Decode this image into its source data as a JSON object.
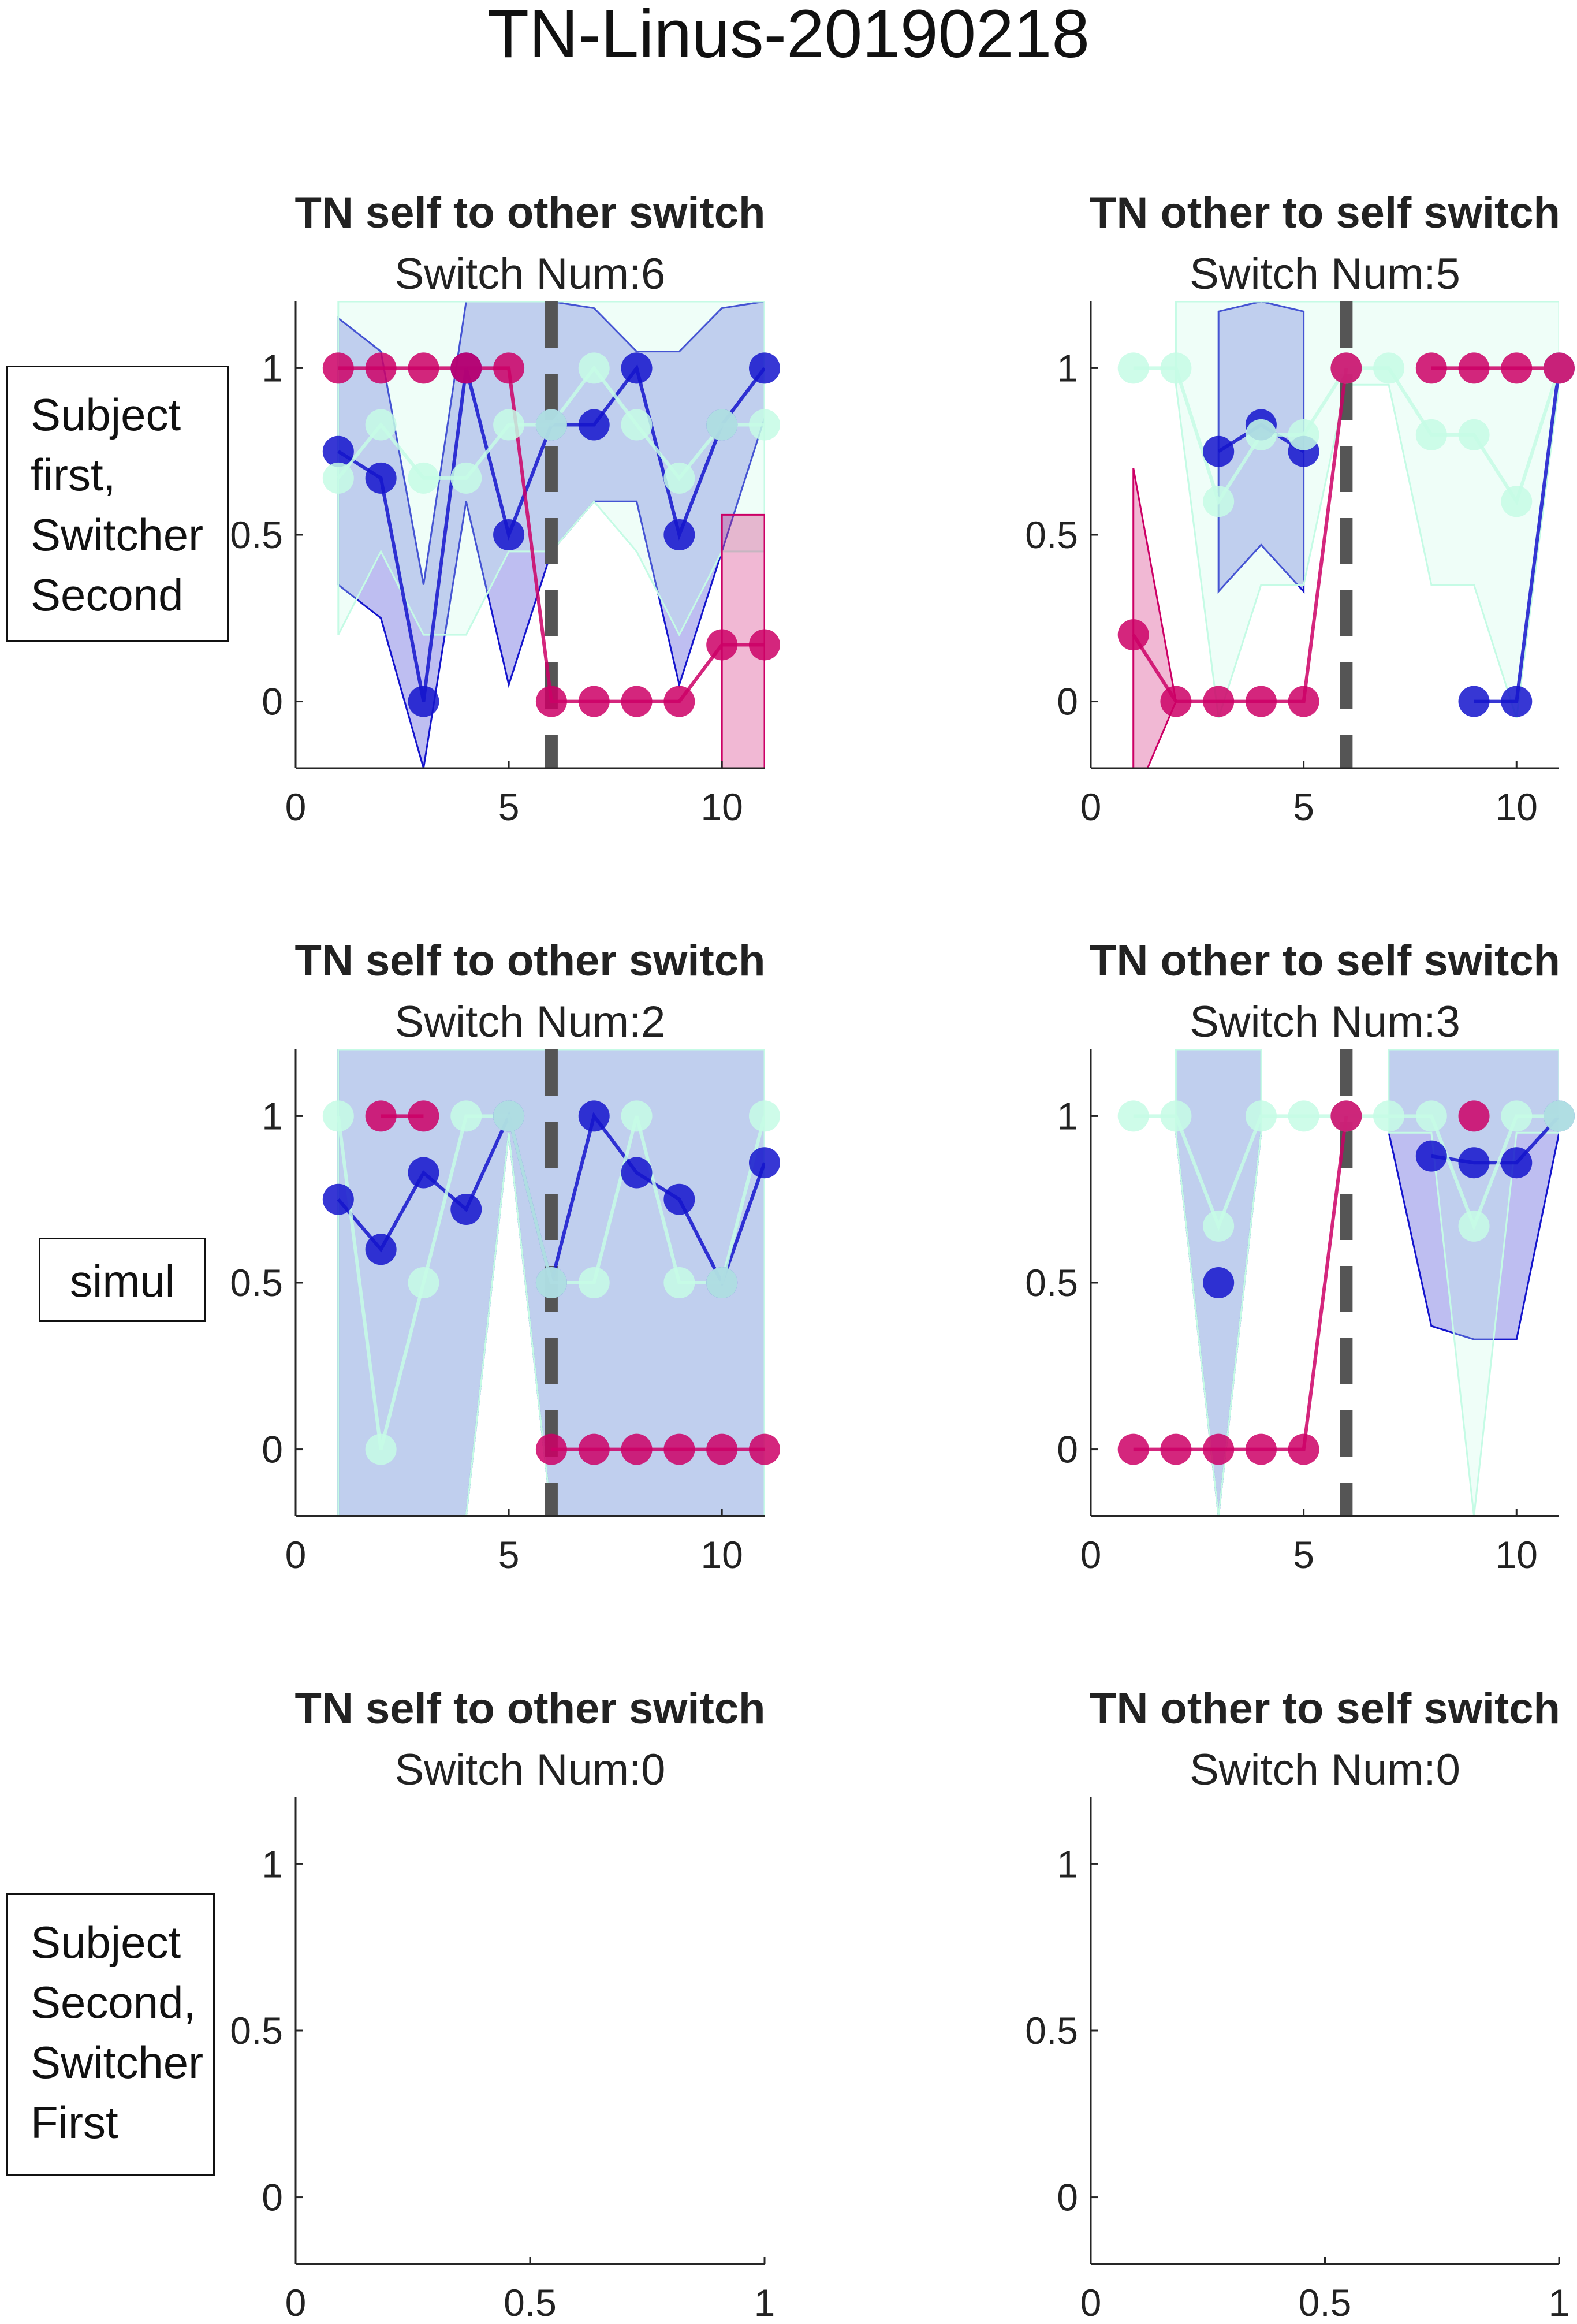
{
  "figure": {
    "title": "TN-Linus-20190218",
    "row_labels": [
      [
        "Subject",
        "first,",
        "Switcher",
        "Second"
      ],
      [
        "simul"
      ],
      [
        "Subject",
        "Second,",
        "Switcher",
        "First"
      ]
    ]
  },
  "chart_data": [
    {
      "type": "line",
      "title": "TN self to other switch",
      "subtitle": "Switch Num:6",
      "xlim": [
        0,
        11
      ],
      "ylim": [
        -0.2,
        1.2
      ],
      "xticks": [
        0,
        5,
        10
      ],
      "xtick_labels": [
        "0",
        "5",
        "10"
      ],
      "yticks": [
        0,
        0.5,
        1
      ],
      "ytick_labels": [
        "0",
        "0.5",
        "1"
      ],
      "switch_line_x": 6,
      "series": [
        {
          "color": "#1414cc",
          "x": [
            1,
            2,
            3,
            4,
            5,
            6,
            7,
            8,
            9,
            10,
            11
          ],
          "y": [
            0.75,
            0.67,
            0,
            1,
            0.5,
            0.83,
            0.83,
            1,
            0.5,
            0.83,
            1
          ],
          "upper": [
            1.15,
            1.05,
            0.35,
            1.2,
            1.2,
            1.2,
            1.18,
            1.05,
            1.05,
            1.18,
            1.2
          ],
          "lower": [
            0.35,
            0.25,
            -0.2,
            0.6,
            0.05,
            0.45,
            0.6,
            0.6,
            0.05,
            0.45,
            0.85
          ]
        },
        {
          "color": "#c5fbe5",
          "x": [
            1,
            2,
            3,
            4,
            5,
            6,
            7,
            8,
            9,
            10,
            11
          ],
          "y": [
            0.67,
            0.83,
            0.67,
            0.67,
            0.83,
            0.83,
            1,
            0.83,
            0.67,
            0.83,
            0.83
          ],
          "upper": [
            1.2,
            1.2,
            1.2,
            1.2,
            1.2,
            1.2,
            1.2,
            1.2,
            1.2,
            1.2,
            1.2
          ],
          "lower": [
            0.2,
            0.45,
            0.2,
            0.2,
            0.45,
            0.45,
            0.6,
            0.45,
            0.2,
            0.45,
            0.45
          ]
        },
        {
          "color": "#cc0066",
          "x": [
            1,
            2,
            3,
            4,
            5,
            6,
            7,
            8,
            9,
            10,
            11
          ],
          "y": [
            1,
            1,
            1,
            1,
            1,
            0,
            0,
            0,
            0,
            0.17,
            0.17
          ],
          "upper": [
            null,
            null,
            null,
            null,
            null,
            null,
            null,
            null,
            null,
            0.56,
            0.56
          ],
          "lower": [
            null,
            null,
            null,
            null,
            null,
            null,
            null,
            null,
            null,
            -0.22,
            -0.22
          ]
        }
      ]
    },
    {
      "type": "line",
      "title": "TN other to self switch",
      "subtitle": "Switch Num:5",
      "xlim": [
        0,
        11
      ],
      "ylim": [
        -0.2,
        1.2
      ],
      "xticks": [
        0,
        5,
        10
      ],
      "xtick_labels": [
        "0",
        "5",
        "10"
      ],
      "yticks": [
        0,
        0.5,
        1
      ],
      "ytick_labels": [
        "0",
        "0.5",
        "1"
      ],
      "switch_line_x": 6,
      "series": [
        {
          "color": "#1414cc",
          "x": [
            1,
            2,
            3,
            4,
            5,
            6,
            7,
            8,
            9,
            10,
            11
          ],
          "y": [
            null,
            null,
            0.75,
            0.83,
            0.75,
            null,
            null,
            null,
            0,
            0,
            1
          ],
          "upper": [
            null,
            null,
            1.17,
            1.2,
            1.17,
            null,
            null,
            null,
            null,
            null,
            null
          ],
          "lower": [
            null,
            null,
            0.33,
            0.47,
            0.33,
            null,
            null,
            null,
            null,
            null,
            null
          ]
        },
        {
          "color": "#c5fbe5",
          "x": [
            1,
            2,
            3,
            4,
            5,
            6,
            7,
            8,
            9,
            10,
            11
          ],
          "y": [
            1,
            1,
            0.6,
            0.8,
            0.8,
            1,
            1,
            0.8,
            0.8,
            0.6,
            1
          ],
          "upper": [
            null,
            1.2,
            1.2,
            1.2,
            1.2,
            1.2,
            1.2,
            1.2,
            1.2,
            1.2,
            1.2
          ],
          "lower": [
            null,
            0.95,
            -0.05,
            0.35,
            0.35,
            0.95,
            0.95,
            0.35,
            0.35,
            -0.05,
            0.95
          ]
        },
        {
          "color": "#cc0066",
          "x": [
            1,
            2,
            3,
            4,
            5,
            6,
            7,
            8,
            9,
            10,
            11
          ],
          "y": [
            0.2,
            0,
            0,
            0,
            0,
            1,
            null,
            1,
            1,
            1,
            1
          ],
          "upper": [
            0.7,
            0,
            null,
            null,
            null,
            null,
            null,
            null,
            null,
            null,
            null
          ],
          "lower": [
            -0.3,
            0,
            null,
            null,
            null,
            null,
            null,
            null,
            null,
            null,
            null
          ]
        }
      ]
    },
    {
      "type": "line",
      "title": "TN self to other switch",
      "subtitle": "Switch Num:2",
      "xlim": [
        0,
        11
      ],
      "ylim": [
        -0.2,
        1.2
      ],
      "xticks": [
        0,
        5,
        10
      ],
      "xtick_labels": [
        "0",
        "5",
        "10"
      ],
      "yticks": [
        0,
        0.5,
        1
      ],
      "ytick_labels": [
        "0",
        "0.5",
        "1"
      ],
      "switch_line_x": 6,
      "series": [
        {
          "color": "#1414cc",
          "x": [
            1,
            2,
            3,
            4,
            5,
            6,
            7,
            8,
            9,
            10,
            11
          ],
          "y": [
            0.75,
            0.6,
            0.83,
            0.72,
            1,
            0.5,
            1,
            0.83,
            0.75,
            0.5,
            0.86
          ],
          "upper": [
            1.2,
            1.2,
            1.2,
            1.2,
            1.2,
            1.2,
            1.2,
            1.2,
            1.2,
            1.2,
            1.2
          ],
          "lower": [
            -0.2,
            -0.2,
            -0.2,
            -0.2,
            0.95,
            -0.2,
            -0.2,
            -0.2,
            -0.2,
            -0.2,
            -0.2
          ]
        },
        {
          "color": "#c5fbe5",
          "x": [
            1,
            2,
            3,
            4,
            5,
            6,
            7,
            8,
            9,
            10,
            11
          ],
          "y": [
            1,
            0,
            0.5,
            1,
            1,
            0.5,
            0.5,
            1,
            0.5,
            0.5,
            1
          ],
          "upper": [
            1.2,
            1.2,
            1.2,
            1.2,
            1.2,
            1.2,
            1.2,
            1.2,
            1.2,
            1.2,
            1.2
          ],
          "lower": [
            -0.2,
            -0.2,
            -0.2,
            -0.2,
            0.95,
            -0.2,
            -0.2,
            -0.2,
            -0.2,
            -0.2,
            -0.2
          ]
        },
        {
          "color": "#cc0066",
          "x": [
            1,
            2,
            3,
            4,
            5,
            6,
            7,
            8,
            9,
            10,
            11
          ],
          "y": [
            null,
            1,
            1,
            null,
            null,
            0,
            0,
            0,
            0,
            0,
            0
          ],
          "upper": [
            null,
            null,
            null,
            null,
            null,
            null,
            null,
            null,
            null,
            null,
            null
          ],
          "lower": [
            null,
            null,
            null,
            null,
            null,
            null,
            null,
            null,
            null,
            null,
            null
          ]
        }
      ]
    },
    {
      "type": "line",
      "title": "TN other to self switch",
      "subtitle": "Switch Num:3",
      "xlim": [
        0,
        11
      ],
      "ylim": [
        -0.2,
        1.2
      ],
      "xticks": [
        0,
        5,
        10
      ],
      "xtick_labels": [
        "0",
        "5",
        "10"
      ],
      "yticks": [
        0,
        0.5,
        1
      ],
      "ytick_labels": [
        "0",
        "0.5",
        "1"
      ],
      "switch_line_x": 6,
      "series": [
        {
          "color": "#1414cc",
          "x": [
            1,
            2,
            3,
            4,
            5,
            6,
            7,
            8,
            9,
            10,
            11
          ],
          "y": [
            null,
            null,
            0.5,
            null,
            null,
            null,
            null,
            0.88,
            0.86,
            0.86,
            1
          ],
          "upper": [
            null,
            1.2,
            1.2,
            1.2,
            null,
            null,
            1.2,
            1.2,
            1.2,
            1.2,
            1.2
          ],
          "lower": [
            null,
            0.95,
            -0.2,
            0.95,
            null,
            null,
            0.95,
            0.37,
            0.33,
            0.33,
            0.95
          ]
        },
        {
          "color": "#c5fbe5",
          "x": [
            1,
            2,
            3,
            4,
            5,
            6,
            7,
            8,
            9,
            10,
            11
          ],
          "y": [
            1,
            1,
            0.67,
            1,
            1,
            1,
            1,
            1,
            0.67,
            1,
            1
          ],
          "upper": [
            null,
            1.2,
            1.2,
            1.2,
            null,
            null,
            1.2,
            1.2,
            1.2,
            1.2,
            1.2
          ],
          "lower": [
            null,
            0.95,
            -0.2,
            0.95,
            null,
            null,
            0.95,
            0.95,
            -0.2,
            0.95,
            0.95
          ]
        },
        {
          "color": "#cc0066",
          "x": [
            1,
            2,
            3,
            4,
            5,
            6,
            7,
            8,
            9,
            10,
            11
          ],
          "y": [
            0,
            0,
            0,
            0,
            0,
            1,
            null,
            null,
            1,
            null,
            null
          ],
          "upper": [
            null,
            null,
            null,
            null,
            null,
            null,
            null,
            null,
            null,
            null,
            null
          ],
          "lower": [
            null,
            null,
            null,
            null,
            null,
            null,
            null,
            null,
            null,
            null,
            null
          ]
        }
      ]
    },
    {
      "type": "line",
      "title": "TN self to other switch",
      "subtitle": "Switch Num:0",
      "xlim": [
        0,
        1
      ],
      "ylim": [
        -0.2,
        1.2
      ],
      "xticks": [
        0,
        0.5,
        1
      ],
      "xtick_labels": [
        "0",
        "0.5",
        "1"
      ],
      "yticks": [
        0,
        0.5,
        1
      ],
      "ytick_labels": [
        "0",
        "0.5",
        "1"
      ],
      "switch_line_x": null,
      "series": []
    },
    {
      "type": "line",
      "title": "TN other to self switch",
      "subtitle": "Switch Num:0",
      "xlim": [
        0,
        1
      ],
      "ylim": [
        -0.2,
        1.2
      ],
      "xticks": [
        0,
        0.5,
        1
      ],
      "xtick_labels": [
        "0",
        "0.5",
        "1"
      ],
      "yticks": [
        0,
        0.5,
        1
      ],
      "ytick_labels": [
        "0",
        "0.5",
        "1"
      ],
      "switch_line_x": null,
      "series": []
    }
  ]
}
